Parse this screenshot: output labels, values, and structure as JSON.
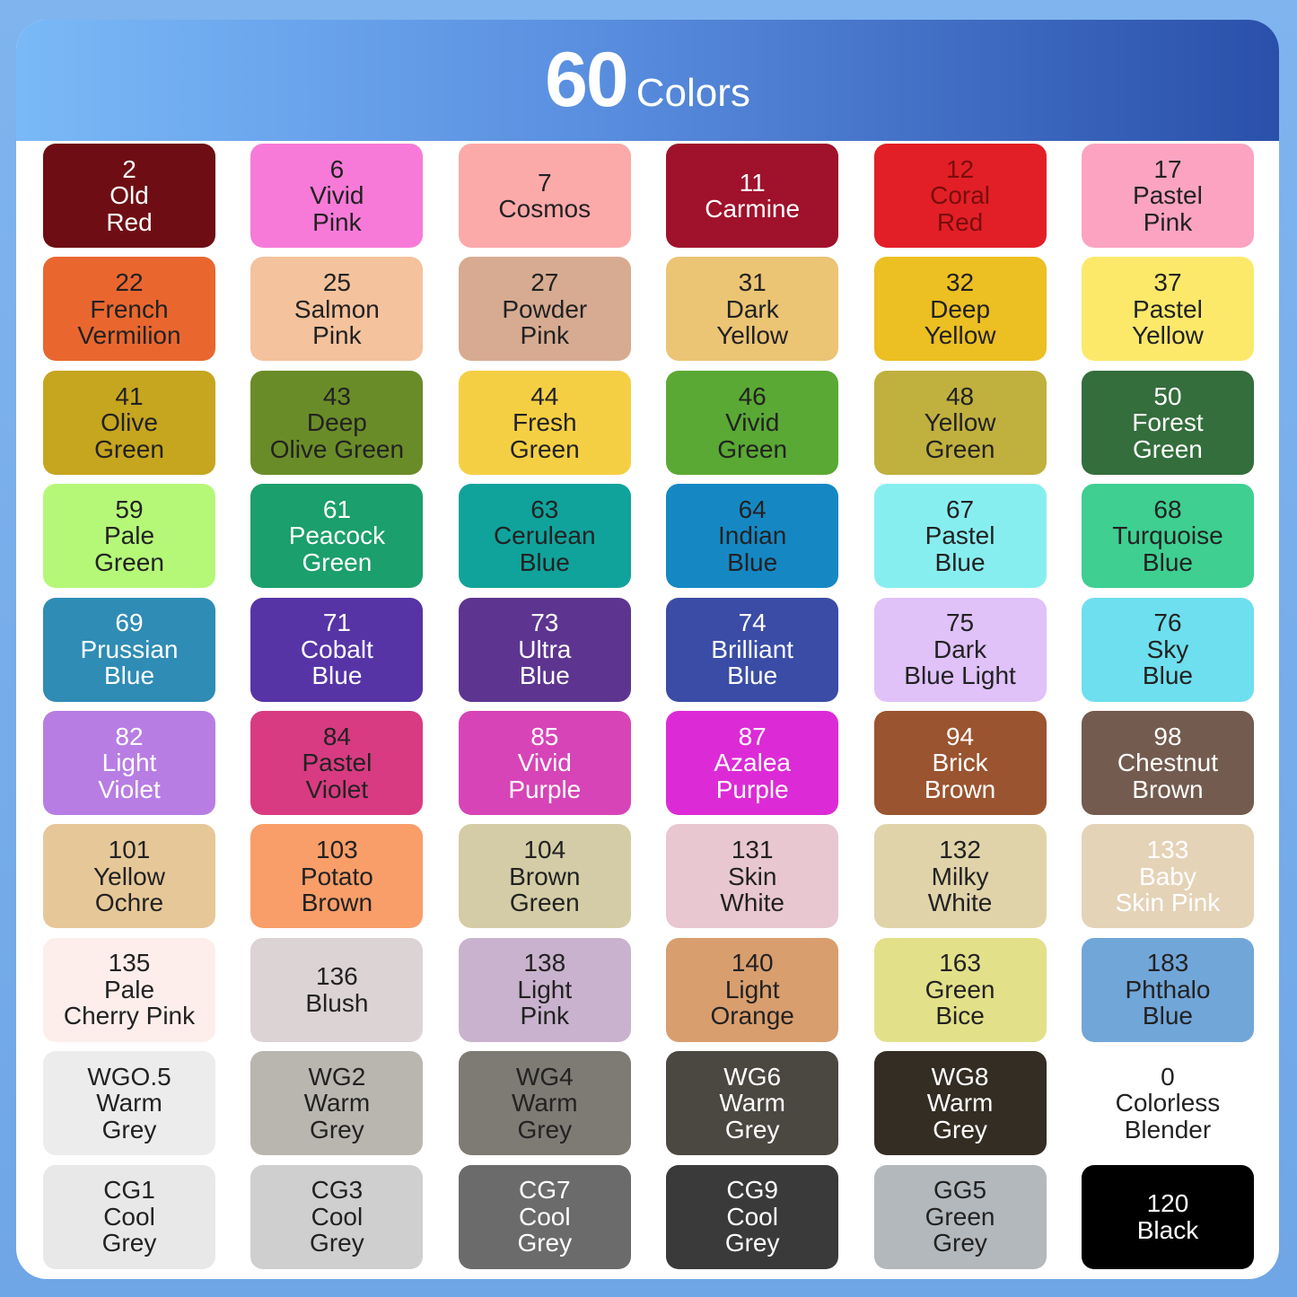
{
  "header": {
    "count": "60",
    "word": "Colors"
  },
  "colors": [
    {
      "lines": [
        "2",
        "Old",
        "Red"
      ],
      "bg": "#6e0e14",
      "fg": "#ffffff"
    },
    {
      "lines": [
        "6",
        "Vivid",
        "Pink"
      ],
      "bg": "#f77ad8",
      "fg": "#222222"
    },
    {
      "lines": [
        "7",
        "Cosmos"
      ],
      "bg": "#fca9aa",
      "fg": "#222222"
    },
    {
      "lines": [
        "11",
        "Carmine"
      ],
      "bg": "#a0112b",
      "fg": "#ffffff"
    },
    {
      "lines": [
        "12",
        "Coral",
        "Red"
      ],
      "bg": "#e21f26",
      "fg": "#7a0d0d"
    },
    {
      "lines": [
        "17",
        "Pastel",
        "Pink"
      ],
      "bg": "#fca3c2",
      "fg": "#222222"
    },
    {
      "lines": [
        "22",
        "French",
        "Vermilion"
      ],
      "bg": "#e9672f",
      "fg": "#222222"
    },
    {
      "lines": [
        "25",
        "Salmon",
        "Pink"
      ],
      "bg": "#f4c29c",
      "fg": "#222222"
    },
    {
      "lines": [
        "27",
        "Powder",
        "Pink"
      ],
      "bg": "#d7ab91",
      "fg": "#222222"
    },
    {
      "lines": [
        "31",
        "Dark",
        "Yellow"
      ],
      "bg": "#ebc474",
      "fg": "#222222"
    },
    {
      "lines": [
        "32",
        "Deep",
        "Yellow"
      ],
      "bg": "#ecbf22",
      "fg": "#222222"
    },
    {
      "lines": [
        "37",
        "Pastel",
        "Yellow"
      ],
      "bg": "#fce96a",
      "fg": "#222222"
    },
    {
      "lines": [
        "41",
        "Olive",
        "Green"
      ],
      "bg": "#c6a51f",
      "fg": "#222222"
    },
    {
      "lines": [
        "43",
        "Deep",
        "Olive Green"
      ],
      "bg": "#6a8c28",
      "fg": "#222222"
    },
    {
      "lines": [
        "44",
        "Fresh",
        "Green"
      ],
      "bg": "#f5cf43",
      "fg": "#222222"
    },
    {
      "lines": [
        "46",
        "Vivid",
        "Green"
      ],
      "bg": "#5aa934",
      "fg": "#222222"
    },
    {
      "lines": [
        "48",
        "Yellow",
        "Green"
      ],
      "bg": "#c0b03e",
      "fg": "#222222"
    },
    {
      "lines": [
        "50",
        "Forest",
        "Green"
      ],
      "bg": "#346e3c",
      "fg": "#ffffff"
    },
    {
      "lines": [
        "59",
        "Pale",
        "Green"
      ],
      "bg": "#b5f878",
      "fg": "#222222"
    },
    {
      "lines": [
        "61",
        "Peacock",
        "Green"
      ],
      "bg": "#1b9f6c",
      "fg": "#ffffff"
    },
    {
      "lines": [
        "63",
        "Cerulean",
        "Blue"
      ],
      "bg": "#10a39c",
      "fg": "#222222"
    },
    {
      "lines": [
        "64",
        "Indian",
        "Blue"
      ],
      "bg": "#1588c4",
      "fg": "#222222"
    },
    {
      "lines": [
        "67",
        "Pastel",
        "Blue"
      ],
      "bg": "#87eef0",
      "fg": "#222222"
    },
    {
      "lines": [
        "68",
        "Turquoise",
        "Blue"
      ],
      "bg": "#3ecf91",
      "fg": "#222222"
    },
    {
      "lines": [
        "69",
        "Prussian",
        "Blue"
      ],
      "bg": "#2f8cb5",
      "fg": "#ffffff"
    },
    {
      "lines": [
        "71",
        "Cobalt",
        "Blue"
      ],
      "bg": "#5734a6",
      "fg": "#ffffff"
    },
    {
      "lines": [
        "73",
        "Ultra",
        "Blue"
      ],
      "bg": "#5d3590",
      "fg": "#ffffff"
    },
    {
      "lines": [
        "74",
        "Brilliant",
        "Blue"
      ],
      "bg": "#3a4ca6",
      "fg": "#ffffff"
    },
    {
      "lines": [
        "75",
        "Dark",
        "Blue Light"
      ],
      "bg": "#e0c1f8",
      "fg": "#222222"
    },
    {
      "lines": [
        "76",
        "Sky",
        "Blue"
      ],
      "bg": "#6ddfee",
      "fg": "#222222"
    },
    {
      "lines": [
        "82",
        "Light",
        "Violet"
      ],
      "bg": "#b87de3",
      "fg": "#ffffff"
    },
    {
      "lines": [
        "84",
        "Pastel",
        "Violet"
      ],
      "bg": "#d83b81",
      "fg": "#222222"
    },
    {
      "lines": [
        "85",
        "Vivid",
        "Purple"
      ],
      "bg": "#d744b7",
      "fg": "#ffffff"
    },
    {
      "lines": [
        "87",
        "Azalea",
        "Purple"
      ],
      "bg": "#dc2bd6",
      "fg": "#ffffff"
    },
    {
      "lines": [
        "94",
        "Brick",
        "Brown"
      ],
      "bg": "#9a5430",
      "fg": "#ffffff"
    },
    {
      "lines": [
        "98",
        "Chestnut",
        "Brown"
      ],
      "bg": "#735b4f",
      "fg": "#ffffff"
    },
    {
      "lines": [
        "101",
        "Yellow",
        "Ochre"
      ],
      "bg": "#e6c798",
      "fg": "#222222"
    },
    {
      "lines": [
        "103",
        "Potato",
        "Brown"
      ],
      "bg": "#f99e69",
      "fg": "#222222"
    },
    {
      "lines": [
        "104",
        "Brown",
        "Green"
      ],
      "bg": "#d3cca6",
      "fg": "#222222"
    },
    {
      "lines": [
        "131",
        "Skin",
        "White"
      ],
      "bg": "#e8c7d0",
      "fg": "#222222"
    },
    {
      "lines": [
        "132",
        "Milky",
        "White"
      ],
      "bg": "#e0d3a9",
      "fg": "#222222"
    },
    {
      "lines": [
        "133",
        "Baby",
        "Skin Pink"
      ],
      "bg": "#e5d3b8",
      "fg": "#ffffff"
    },
    {
      "lines": [
        "135",
        "Pale",
        "Cherry Pink"
      ],
      "bg": "#fdeeec",
      "fg": "#222222"
    },
    {
      "lines": [
        "136",
        "Blush"
      ],
      "bg": "#dcd3d5",
      "fg": "#222222"
    },
    {
      "lines": [
        "138",
        "Light",
        "Pink"
      ],
      "bg": "#c9b2cd",
      "fg": "#222222"
    },
    {
      "lines": [
        "140",
        "Light",
        "Orange"
      ],
      "bg": "#d99e6e",
      "fg": "#222222"
    },
    {
      "lines": [
        "163",
        "Green",
        "Bice"
      ],
      "bg": "#e3e08a",
      "fg": "#222222"
    },
    {
      "lines": [
        "183",
        "Phthalo",
        "Blue"
      ],
      "bg": "#71a6d9",
      "fg": "#222222"
    },
    {
      "lines": [
        "WGO.5",
        "Warm",
        "Grey"
      ],
      "bg": "#ececec",
      "fg": "#222222"
    },
    {
      "lines": [
        "WG2",
        "Warm",
        "Grey"
      ],
      "bg": "#b9b6b0",
      "fg": "#222222"
    },
    {
      "lines": [
        "WG4",
        "Warm",
        "Grey"
      ],
      "bg": "#7e7a74",
      "fg": "#222222"
    },
    {
      "lines": [
        "WG6",
        "Warm",
        "Grey"
      ],
      "bg": "#4b4841",
      "fg": "#ffffff"
    },
    {
      "lines": [
        "WG8",
        "Warm",
        "Grey"
      ],
      "bg": "#332d23",
      "fg": "#ffffff"
    },
    {
      "lines": [
        "0",
        "Colorless",
        "Blender"
      ],
      "bg": "#ffffff",
      "fg": "#222222"
    },
    {
      "lines": [
        "CG1",
        "Cool",
        "Grey"
      ],
      "bg": "#e8e8e8",
      "fg": "#222222"
    },
    {
      "lines": [
        "CG3",
        "Cool",
        "Grey"
      ],
      "bg": "#cfcfcf",
      "fg": "#222222"
    },
    {
      "lines": [
        "CG7",
        "Cool",
        "Grey"
      ],
      "bg": "#6b6b6b",
      "fg": "#ffffff"
    },
    {
      "lines": [
        "CG9",
        "Cool",
        "Grey"
      ],
      "bg": "#3a3a3a",
      "fg": "#ffffff"
    },
    {
      "lines": [
        "GG5",
        "Green",
        "Grey"
      ],
      "bg": "#b3b8bc",
      "fg": "#222222"
    },
    {
      "lines": [
        "120",
        "Black"
      ],
      "bg": "#000000",
      "fg": "#ffffff"
    }
  ]
}
